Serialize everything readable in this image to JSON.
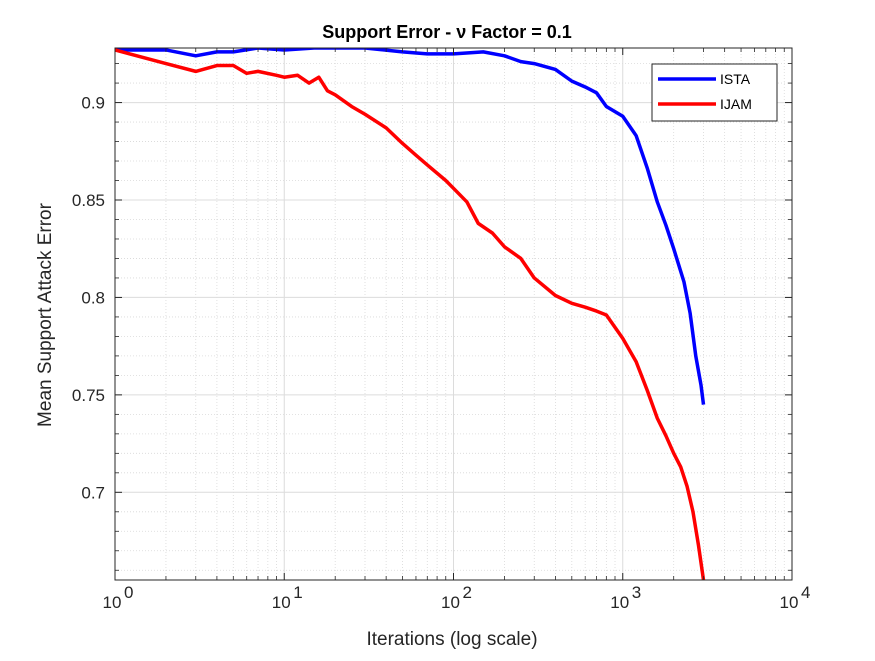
{
  "chart_data": {
    "type": "line",
    "title": "Support Error - ν Factor = 0.1",
    "xlabel": "Iterations (log scale)",
    "ylabel": "Mean Support Attack Error",
    "x_scale": "log",
    "xlim": [
      1,
      10000
    ],
    "ylim": [
      0.655,
      0.928
    ],
    "x_ticks": [
      {
        "value": 1,
        "mantissa": "10",
        "exp": "0"
      },
      {
        "value": 10,
        "mantissa": "10",
        "exp": "1"
      },
      {
        "value": 100,
        "mantissa": "10",
        "exp": "2"
      },
      {
        "value": 1000,
        "mantissa": "10",
        "exp": "3"
      },
      {
        "value": 10000,
        "mantissa": "10",
        "exp": "4"
      }
    ],
    "y_ticks": [
      {
        "value": 0.7,
        "label": "0.7"
      },
      {
        "value": 0.75,
        "label": "0.75"
      },
      {
        "value": 0.8,
        "label": "0.8"
      },
      {
        "value": 0.85,
        "label": "0.85"
      },
      {
        "value": 0.9,
        "label": "0.9"
      }
    ],
    "grid": true,
    "minor_grid": true,
    "legend_position": "top-right",
    "series": [
      {
        "name": "ISTA",
        "color": "#0000ff",
        "points": [
          [
            1,
            0.927
          ],
          [
            2,
            0.927
          ],
          [
            3,
            0.924
          ],
          [
            4,
            0.926
          ],
          [
            5,
            0.926
          ],
          [
            7,
            0.928
          ],
          [
            10,
            0.927
          ],
          [
            15,
            0.928
          ],
          [
            20,
            0.928
          ],
          [
            30,
            0.928
          ],
          [
            50,
            0.926
          ],
          [
            70,
            0.925
          ],
          [
            100,
            0.925
          ],
          [
            150,
            0.926
          ],
          [
            200,
            0.924
          ],
          [
            250,
            0.921
          ],
          [
            300,
            0.92
          ],
          [
            400,
            0.917
          ],
          [
            500,
            0.911
          ],
          [
            600,
            0.908
          ],
          [
            700,
            0.905
          ],
          [
            800,
            0.898
          ],
          [
            1000,
            0.893
          ],
          [
            1200,
            0.883
          ],
          [
            1400,
            0.866
          ],
          [
            1600,
            0.849
          ],
          [
            1800,
            0.837
          ],
          [
            2000,
            0.825
          ],
          [
            2300,
            0.808
          ],
          [
            2500,
            0.792
          ],
          [
            2700,
            0.77
          ],
          [
            2900,
            0.755
          ],
          [
            3000,
            0.745
          ]
        ]
      },
      {
        "name": "IJAM",
        "color": "#ff0000",
        "points": [
          [
            1,
            0.927
          ],
          [
            2,
            0.92
          ],
          [
            3,
            0.916
          ],
          [
            4,
            0.919
          ],
          [
            5,
            0.919
          ],
          [
            6,
            0.915
          ],
          [
            7,
            0.916
          ],
          [
            9,
            0.914
          ],
          [
            10,
            0.913
          ],
          [
            12,
            0.914
          ],
          [
            14,
            0.91
          ],
          [
            16,
            0.913
          ],
          [
            18,
            0.906
          ],
          [
            20,
            0.904
          ],
          [
            25,
            0.898
          ],
          [
            30,
            0.894
          ],
          [
            40,
            0.887
          ],
          [
            50,
            0.879
          ],
          [
            60,
            0.873
          ],
          [
            70,
            0.868
          ],
          [
            90,
            0.86
          ],
          [
            100,
            0.856
          ],
          [
            120,
            0.849
          ],
          [
            140,
            0.838
          ],
          [
            170,
            0.833
          ],
          [
            200,
            0.826
          ],
          [
            250,
            0.82
          ],
          [
            300,
            0.81
          ],
          [
            400,
            0.801
          ],
          [
            500,
            0.797
          ],
          [
            600,
            0.795
          ],
          [
            700,
            0.793
          ],
          [
            800,
            0.791
          ],
          [
            1000,
            0.779
          ],
          [
            1200,
            0.767
          ],
          [
            1400,
            0.752
          ],
          [
            1600,
            0.738
          ],
          [
            1800,
            0.729
          ],
          [
            2000,
            0.72
          ],
          [
            2200,
            0.713
          ],
          [
            2400,
            0.703
          ],
          [
            2600,
            0.69
          ],
          [
            2800,
            0.673
          ],
          [
            3000,
            0.655
          ]
        ]
      }
    ]
  }
}
